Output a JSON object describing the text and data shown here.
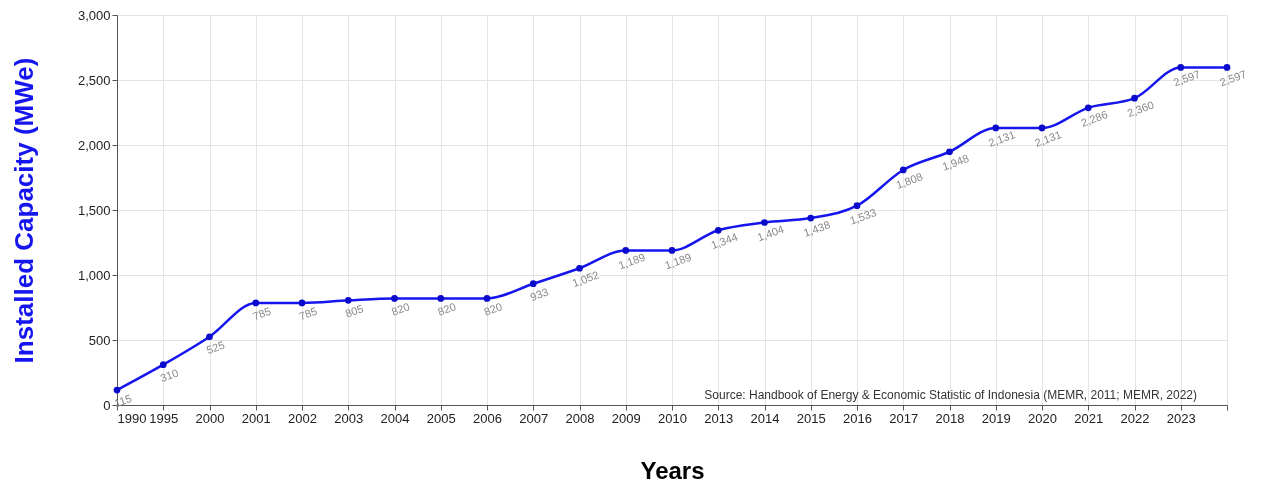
{
  "chart_data": {
    "type": "line",
    "xlabel": "Years",
    "ylabel": "Installed Capacity (MWe)",
    "categories": [
      "1990",
      "1995",
      "2000",
      "2001",
      "2002",
      "2003",
      "2004",
      "2005",
      "2006",
      "2007",
      "2008",
      "2009",
      "2010",
      "2013",
      "2014",
      "2015",
      "2016",
      "2017",
      "2018",
      "2019",
      "2020",
      "2021",
      "2022",
      "2023",
      null
    ],
    "series": [
      {
        "color": "#1515ee",
        "values": [
          115,
          310,
          525,
          785,
          785,
          805,
          820,
          820,
          820,
          933,
          1052,
          1189,
          1189,
          1344,
          1404,
          1438,
          1533,
          1808,
          1948,
          2131,
          2131,
          2286,
          2360,
          2597,
          2597
        ],
        "value_labels": [
          "115",
          "310",
          "525",
          "785",
          "785",
          "805",
          "820",
          "820",
          "820",
          "933",
          "1,052",
          "1,189",
          "1,189",
          "1,344",
          "1,404",
          "1,438",
          "1,533",
          "1,808",
          "1,948",
          "2,131",
          "2,131",
          "2,286",
          "2,360",
          "2,597",
          "2,597"
        ]
      }
    ],
    "ylim": [
      0,
      3000
    ],
    "yticks": [
      0,
      {
        "value": 500,
        "label": "500"
      },
      {
        "value": 1000,
        "label": "1,000"
      },
      {
        "value": 1500,
        "label": "1,500"
      },
      {
        "value": 2000,
        "label": "2,000"
      },
      {
        "value": 2500,
        "label": "2,500"
      },
      {
        "value": 3000,
        "label": "3,000"
      }
    ],
    "grid": true,
    "marker": "circle",
    "line_style": "solid",
    "annotations": [
      "Source: Handbook of Energy & Economic Statistic of Indonesia (MEMR, 2011; MEMR, 2022)"
    ]
  }
}
